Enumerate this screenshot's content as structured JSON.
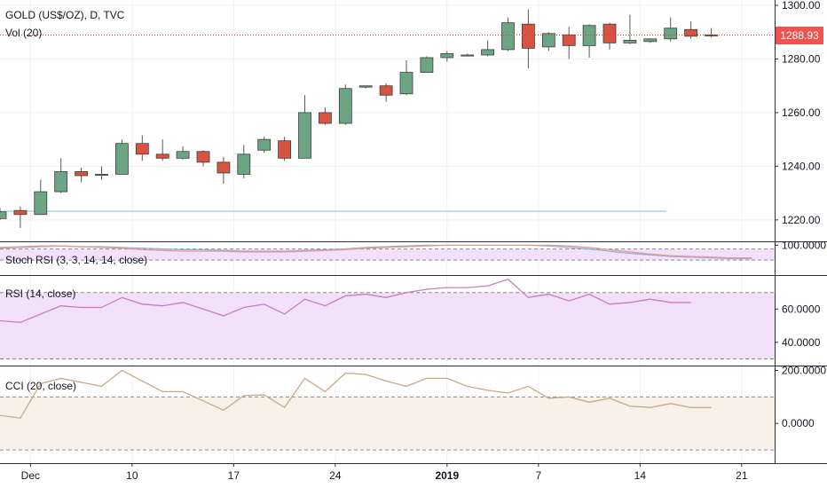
{
  "header": {
    "symbol_line": "GOLD (US$/OZ), D, TVC",
    "volume_label": "Vol (20)"
  },
  "last_price": "1288.93",
  "colors": {
    "up": "#6ba583",
    "down": "#d75442",
    "price_line": "#e53935",
    "stoch_k": "#8fb0d8",
    "stoch_d": "#e89a8c",
    "rsi": "#c77fc0",
    "cci": "#c8aa86",
    "osc_bg": "#f3e1fa",
    "cci_bg": "#f7f1e8",
    "support_line": "#a9d8ef"
  },
  "chart_data": [
    {
      "type": "candlestick",
      "title": "GOLD (US$/OZ), D, TVC",
      "ylim": [
        1212,
        1302
      ],
      "y_ticks": [
        "1220.00",
        "1240.00",
        "1260.00",
        "1280.00",
        "1300.00"
      ],
      "y_tick_values": [
        1220,
        1240,
        1260,
        1280,
        1300
      ],
      "x_tick_labels": [
        "Dec",
        "10",
        "17",
        "24",
        "2019",
        "7",
        "14",
        "21"
      ],
      "x_tick_slots": [
        1.5,
        6.5,
        11.5,
        16.5,
        22,
        26.5,
        31.5,
        36.5
      ],
      "last_price": 1288.93,
      "support_level": 1223.2,
      "candles": [
        {
          "o": 1220.5,
          "h": 1224.5,
          "l": 1220.0,
          "c": 1223.0
        },
        {
          "o": 1223.5,
          "h": 1225.0,
          "l": 1217.0,
          "c": 1222.0
        },
        {
          "o": 1222.0,
          "h": 1235.0,
          "l": 1222.0,
          "c": 1230.5
        },
        {
          "o": 1230.5,
          "h": 1243.0,
          "l": 1230.0,
          "c": 1238.0
        },
        {
          "o": 1238.0,
          "h": 1239.5,
          "l": 1234.0,
          "c": 1236.5
        },
        {
          "o": 1237.0,
          "h": 1240.0,
          "l": 1235.0,
          "c": 1237.0
        },
        {
          "o": 1237.0,
          "h": 1250.0,
          "l": 1237.0,
          "c": 1248.5
        },
        {
          "o": 1248.5,
          "h": 1251.5,
          "l": 1242.0,
          "c": 1244.5
        },
        {
          "o": 1244.5,
          "h": 1250.0,
          "l": 1242.0,
          "c": 1243.0
        },
        {
          "o": 1243.0,
          "h": 1247.5,
          "l": 1242.5,
          "c": 1245.5
        },
        {
          "o": 1245.5,
          "h": 1246.0,
          "l": 1240.0,
          "c": 1241.5
        },
        {
          "o": 1241.5,
          "h": 1243.5,
          "l": 1233.5,
          "c": 1237.5
        },
        {
          "o": 1237.0,
          "h": 1248.0,
          "l": 1235.5,
          "c": 1244.5
        },
        {
          "o": 1246.0,
          "h": 1251.0,
          "l": 1245.0,
          "c": 1250.0
        },
        {
          "o": 1249.5,
          "h": 1251.0,
          "l": 1242.0,
          "c": 1243.0
        },
        {
          "o": 1243.0,
          "h": 1266.5,
          "l": 1243.0,
          "c": 1260.0
        },
        {
          "o": 1260.0,
          "h": 1262.0,
          "l": 1255.5,
          "c": 1256.0
        },
        {
          "o": 1256.0,
          "h": 1270.5,
          "l": 1255.5,
          "c": 1269.0
        },
        {
          "o": 1269.5,
          "h": 1270.0,
          "l": 1269.0,
          "c": 1270.0
        },
        {
          "o": 1270.0,
          "h": 1271.0,
          "l": 1264.0,
          "c": 1266.5
        },
        {
          "o": 1267.0,
          "h": 1279.5,
          "l": 1266.5,
          "c": 1275.0
        },
        {
          "o": 1275.0,
          "h": 1281.0,
          "l": 1275.0,
          "c": 1280.5
        },
        {
          "o": 1280.5,
          "h": 1283.0,
          "l": 1279.0,
          "c": 1282.0
        },
        {
          "o": 1281.5,
          "h": 1282.0,
          "l": 1281.0,
          "c": 1281.5
        },
        {
          "o": 1281.5,
          "h": 1287.0,
          "l": 1281.0,
          "c": 1283.5
        },
        {
          "o": 1283.5,
          "h": 1295.5,
          "l": 1283.0,
          "c": 1293.5
        },
        {
          "o": 1293.0,
          "h": 1298.5,
          "l": 1276.5,
          "c": 1284.0
        },
        {
          "o": 1284.5,
          "h": 1290.0,
          "l": 1283.0,
          "c": 1289.5
        },
        {
          "o": 1289.0,
          "h": 1292.0,
          "l": 1280.0,
          "c": 1285.0
        },
        {
          "o": 1285.0,
          "h": 1293.0,
          "l": 1280.5,
          "c": 1292.5
        },
        {
          "o": 1293.0,
          "h": 1293.5,
          "l": 1283.5,
          "c": 1286.0
        },
        {
          "o": 1286.0,
          "h": 1296.5,
          "l": 1285.5,
          "c": 1287.0
        },
        {
          "o": 1286.5,
          "h": 1287.5,
          "l": 1286.0,
          "c": 1287.5
        },
        {
          "o": 1287.5,
          "h": 1295.5,
          "l": 1286.5,
          "c": 1291.5
        },
        {
          "o": 1291.0,
          "h": 1294.0,
          "l": 1287.5,
          "c": 1288.5
        },
        {
          "o": 1289.0,
          "h": 1291.5,
          "l": 1288.0,
          "c": 1288.9
        }
      ]
    },
    {
      "type": "line",
      "title": "Stoch RSI (3, 3, 14, 14, close)",
      "ylim": [
        60,
        104
      ],
      "y_ticks": [
        "100.0000"
      ],
      "y_tick_values": [
        100
      ],
      "band": [
        80,
        95
      ],
      "series": [
        {
          "values": [
            96,
            97,
            98,
            99,
            98,
            98,
            97,
            96,
            95,
            94,
            94,
            93,
            92,
            92,
            92,
            93,
            94,
            95,
            97,
            98,
            99,
            100,
            100,
            100,
            100,
            100,
            100,
            99,
            97,
            95,
            92,
            89,
            87,
            85,
            84,
            83,
            82,
            82
          ]
        },
        {
          "values": [
            97,
            98,
            99,
            99,
            98,
            97,
            96,
            94,
            93,
            92,
            92,
            92,
            91,
            91,
            91,
            92,
            93,
            94,
            96,
            97,
            98,
            99,
            100,
            100,
            100,
            100,
            100,
            100,
            99,
            97,
            94,
            91,
            88,
            86,
            85,
            84,
            83,
            83
          ]
        }
      ]
    },
    {
      "type": "line",
      "title": "RSI (14, close)",
      "ylim": [
        26,
        80
      ],
      "y_ticks": [
        "40.0000",
        "60.0000"
      ],
      "y_tick_values": [
        40,
        60
      ],
      "band": [
        30,
        70
      ],
      "series": [
        {
          "values": [
            53,
            52,
            57,
            62,
            61,
            61,
            67,
            63,
            62,
            64,
            60,
            56,
            61,
            63,
            57,
            66,
            62,
            68,
            69,
            67,
            70,
            72,
            73,
            73,
            74,
            78,
            67,
            69,
            65,
            69,
            63,
            64,
            66,
            64,
            64
          ]
        }
      ]
    },
    {
      "type": "line",
      "title": "CCI (20, close)",
      "ylim": [
        -150,
        215
      ],
      "y_ticks": [
        "0.0000",
        "200.0000"
      ],
      "y_tick_values": [
        0,
        200
      ],
      "band": [
        -100,
        100
      ],
      "series": [
        {
          "values": [
            30,
            20,
            150,
            170,
            155,
            140,
            200,
            160,
            120,
            120,
            85,
            50,
            105,
            108,
            60,
            170,
            120,
            190,
            185,
            160,
            140,
            170,
            170,
            140,
            125,
            115,
            140,
            95,
            100,
            80,
            95,
            65,
            60,
            75,
            60,
            60
          ]
        }
      ]
    }
  ]
}
